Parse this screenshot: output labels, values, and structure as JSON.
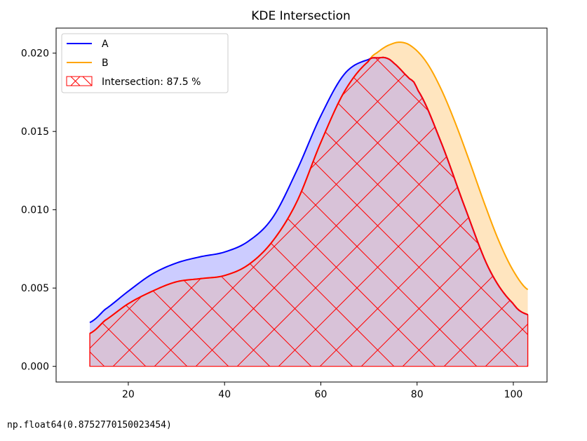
{
  "chart_data": {
    "type": "area",
    "title": "KDE Intersection",
    "xlabel": "",
    "ylabel": "",
    "xlim": [
      5,
      107
    ],
    "ylim": [
      -0.001,
      0.0216
    ],
    "x_ticks": [
      20,
      40,
      60,
      80,
      100
    ],
    "y_ticks": [
      0.0,
      0.005,
      0.01,
      0.015,
      0.02
    ],
    "x_tick_labels": [
      "20",
      "40",
      "60",
      "80",
      "100"
    ],
    "y_tick_labels": [
      "0.000",
      "0.005",
      "0.010",
      "0.015",
      "0.020"
    ],
    "grid": false,
    "legend_position": "top-left",
    "series": [
      {
        "name": "A",
        "color": "#0000ff",
        "fill_color": "#ccccff",
        "x": [
          12,
          15,
          20,
          25,
          30,
          35,
          40,
          45,
          50,
          55,
          60,
          65,
          70,
          72,
          73.5,
          75,
          78,
          80,
          85,
          90,
          95,
          100,
          103
        ],
        "y": [
          0.0028,
          0.0036,
          0.0048,
          0.0059,
          0.0066,
          0.007,
          0.0073,
          0.008,
          0.0095,
          0.0125,
          0.016,
          0.0187,
          0.0196,
          0.0197,
          0.0197,
          0.0194,
          0.0185,
          0.0177,
          0.0143,
          0.0101,
          0.0062,
          0.004,
          0.0033
        ]
      },
      {
        "name": "B",
        "color": "#ffa500",
        "fill_color": "#ffe5bf",
        "x": [
          12,
          15,
          20,
          25,
          30,
          35,
          40,
          45,
          50,
          55,
          60,
          65,
          70,
          72,
          74,
          76.5,
          79,
          82,
          85,
          88,
          91,
          94,
          97,
          100,
          103
        ],
        "y": [
          0.0021,
          0.0029,
          0.004,
          0.0048,
          0.0054,
          0.0056,
          0.0058,
          0.0065,
          0.008,
          0.0105,
          0.0143,
          0.0176,
          0.0195,
          0.0201,
          0.0205,
          0.0207,
          0.0204,
          0.0194,
          0.0177,
          0.0155,
          0.013,
          0.0104,
          0.008,
          0.0061,
          0.0049
        ]
      }
    ],
    "intersection": {
      "label": "Intersection: 87.5 %",
      "color": "#ff0000",
      "fill_color": "#d8c2d8"
    }
  },
  "output": {
    "text": "np.float64(0.8752770150023454)"
  }
}
